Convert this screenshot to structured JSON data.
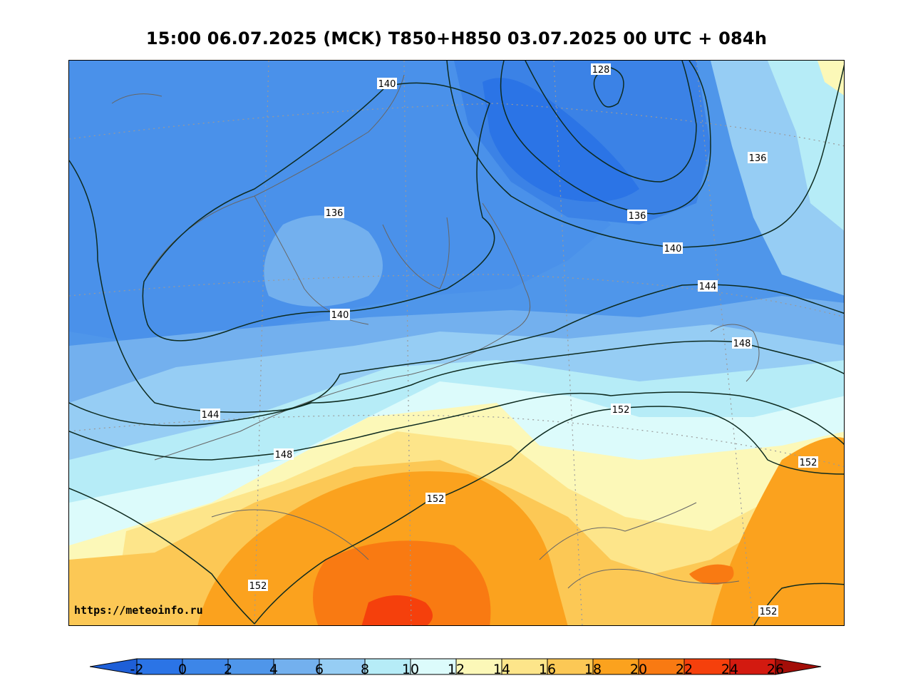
{
  "title": "15:00 06.07.2025 (MCK) T850+H850 03.07.2025 00 UTC + 084h",
  "credit": "https://meteoinfo.ru",
  "colorbar": {
    "ticks": [
      "-2",
      "0",
      "2",
      "4",
      "6",
      "8",
      "10",
      "12",
      "14",
      "16",
      "18",
      "20",
      "22",
      "24",
      "26"
    ],
    "colors": [
      "#1e5fd8",
      "#2b74e6",
      "#3d86e8",
      "#4f96ea",
      "#73b0ee",
      "#96cdf4",
      "#b6ecf7",
      "#dcfbfb",
      "#fcf8b8",
      "#fde58a",
      "#fcc855",
      "#fba21e",
      "#f97a12",
      "#f5400c",
      "#d31a10",
      "#a30e08"
    ]
  },
  "contour_labels": {
    "l1": "140",
    "l2": "128",
    "l3": "136",
    "l4": "136",
    "l5": "136",
    "l6": "140",
    "l7": "144",
    "l8": "140",
    "l9": "148",
    "l10": "144",
    "l11": "152",
    "l12": "148",
    "l13": "152",
    "l14": "152",
    "l15": "152",
    "l16": "152"
  }
}
